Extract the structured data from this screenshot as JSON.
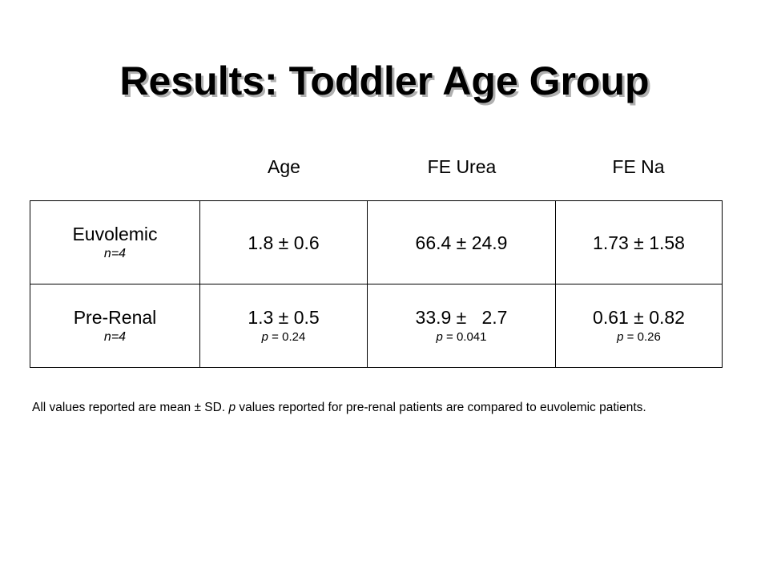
{
  "title": "Results: Toddler Age Group",
  "columns": [
    "Age",
    "FE Urea",
    "FE Na"
  ],
  "rows": [
    {
      "label": "Euvolemic",
      "n": "n=4",
      "age": "1.8 ± 0.6",
      "fe_urea": "66.4 ± 24.9",
      "fe_na": "1.73 ± 1.58"
    },
    {
      "label": "Pre-Renal",
      "n": "n=4",
      "age": "1.3 ± 0.5",
      "age_p_label": "p",
      "age_p_value": " = 0.24",
      "fe_urea": "33.9 ±   2.7",
      "fe_urea_p_label": "p",
      "fe_urea_p_value": " = 0.041",
      "fe_na": "0.61 ± 0.82",
      "fe_na_p_label": "p",
      "fe_na_p_value": " = 0.26"
    }
  ],
  "footnote": {
    "part1": "All values reported are mean ± SD.  ",
    "p_italic": "p",
    "part2": " values reported for pre-renal patients are compared to euvolemic patients."
  }
}
